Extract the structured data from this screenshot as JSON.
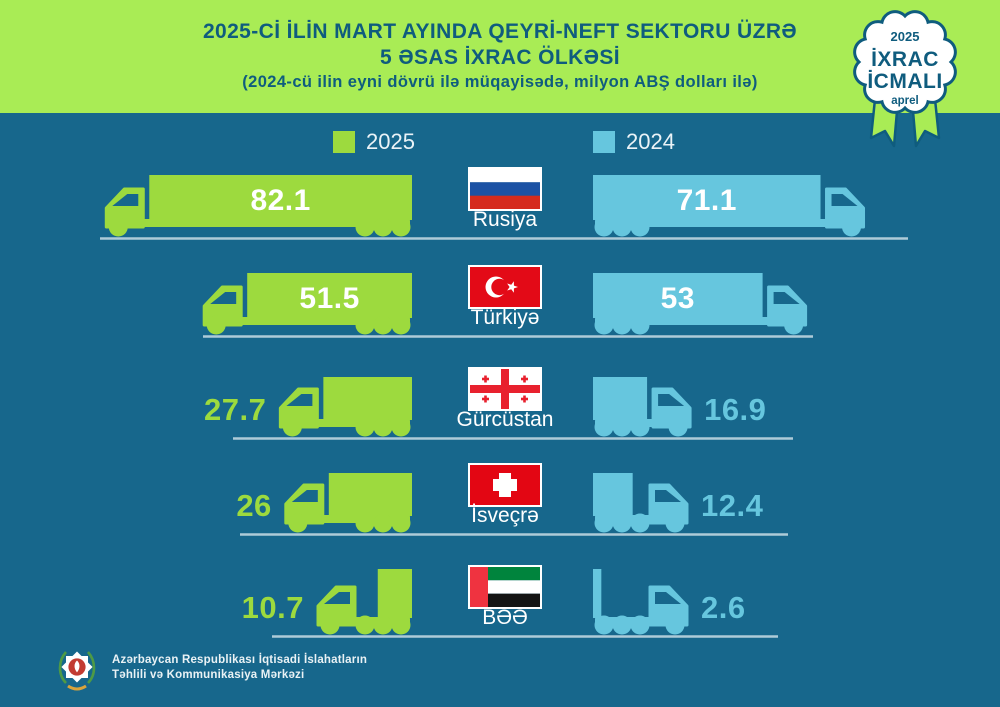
{
  "header": {
    "title_line1": "2025-Cİ İLİN MART AYINDA QEYRİ-NEFT SEKTORU ÜZRƏ",
    "title_line2": "5 ƏSAS İXRAC ÖLKƏSİ",
    "title_line3": "(2024-cü ilin eyni dövrü ilə müqayisədə, milyon ABŞ dolları ilə)"
  },
  "badge": {
    "year": "2025",
    "line1": "İXRAC",
    "line2": "İCMALI",
    "month": "aprel"
  },
  "legend": {
    "items": [
      {
        "label": "2025",
        "color": "#9DDA3E"
      },
      {
        "label": "2024",
        "color": "#66C6DE"
      }
    ]
  },
  "chart_data": {
    "type": "bar",
    "title": "2025-ci ilin mart ayında qeyri-neft sektoru üzrə 5 əsas ixrac ölkəsi",
    "subtitle": "2024-cü ilin eyni dövrü ilə müqayisədə",
    "unit": "milyon ABŞ dolları",
    "categories": [
      "Rusiya",
      "Türkiyə",
      "Gürcüstan",
      "İsveçrə",
      "BƏƏ"
    ],
    "series": [
      {
        "name": "2025",
        "color": "#9DDA3E",
        "values": [
          82.1,
          51.5,
          27.7,
          26,
          10.7
        ]
      },
      {
        "name": "2024",
        "color": "#66C6DE",
        "values": [
          71.1,
          53,
          16.9,
          12.4,
          2.6
        ]
      }
    ],
    "rows": [
      {
        "country": "Rusiya",
        "flag": "russia",
        "display_2025": "82.1",
        "display_2024": "71.1"
      },
      {
        "country": "Türkiyə",
        "flag": "turkey",
        "display_2025": "51.5",
        "display_2024": "53"
      },
      {
        "country": "Gürcüstan",
        "flag": "georgia",
        "display_2025": "27.7",
        "display_2024": "16.9"
      },
      {
        "country": "İsveçrə",
        "flag": "switzerland",
        "display_2025": "26",
        "display_2024": "12.4"
      },
      {
        "country": "BƏƏ",
        "flag": "uae",
        "display_2025": "10.7",
        "display_2024": "2.6"
      }
    ]
  },
  "footer": {
    "org_line1": "Azərbaycan Respublikası İqtisadi İslahatların",
    "org_line2": "Təhlili və Kommunikasiya Mərkəzi"
  },
  "colors": {
    "background": "#17678C",
    "header_band": "#A9EC55",
    "title_text": "#0F5C7E",
    "truck_2025": "#9DDA3E",
    "truck_2024": "#66C6DE",
    "baseline": "#AECBD8",
    "value_inside": "#FFFFFF"
  }
}
